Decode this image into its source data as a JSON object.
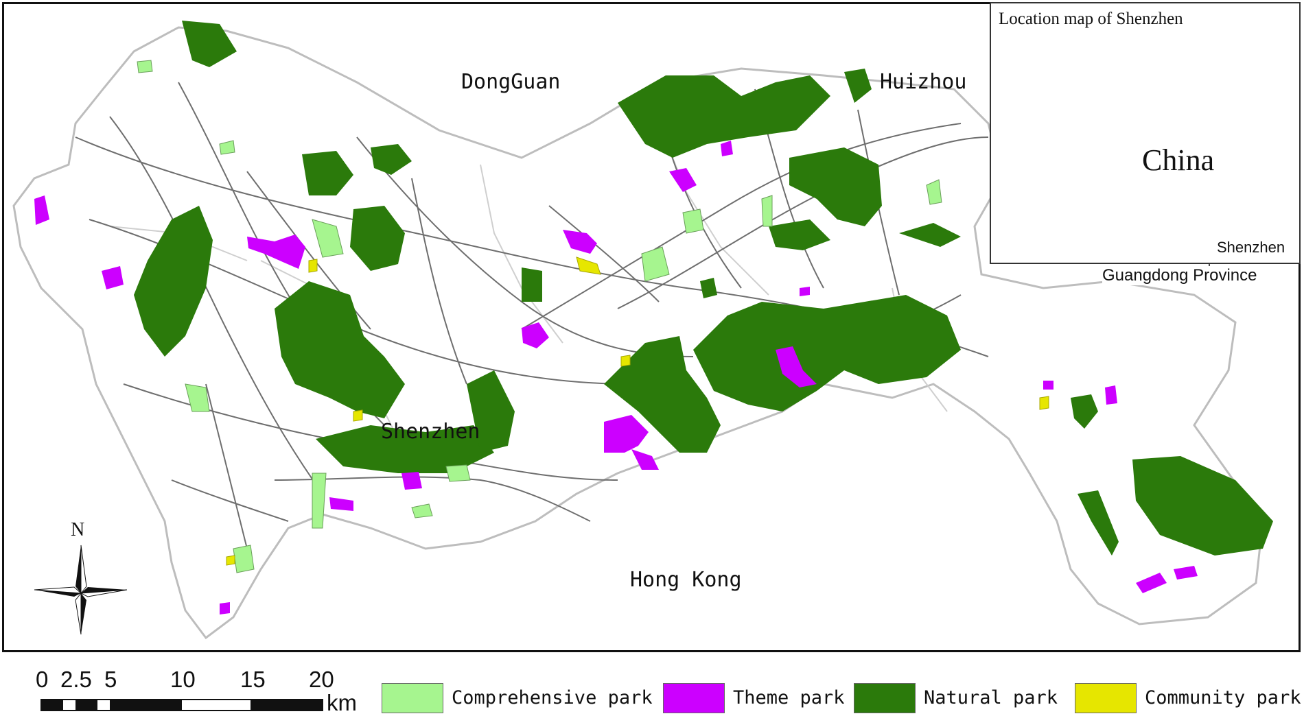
{
  "map": {
    "region_labels": {
      "dongguan": "DongGuan",
      "huizhou": "Huizhou",
      "shenzhen": "Shenzhen",
      "hong_kong": "Hong Kong"
    },
    "north_arrow": "N",
    "colors": {
      "comprehensive_park": "#a6f58f",
      "theme_park": "#cc00ff",
      "natural_park": "#2b7a0b",
      "community_park": "#e6e600",
      "boundary": "#bdbdbd",
      "road": "#6e6e6e",
      "province_highlight": "#e60000",
      "country_fill": "#d9d9d9"
    }
  },
  "inset": {
    "title": "Location map of Shenzhen",
    "country_label": "China",
    "city_label": "Shenzhen",
    "province_label": "Guangdong Province"
  },
  "scale_bar": {
    "ticks": [
      "0",
      "2.5",
      "5",
      "10",
      "15",
      "20"
    ],
    "unit": "km"
  },
  "legend": {
    "items": [
      {
        "label": "Comprehensive park",
        "color": "#a6f58f"
      },
      {
        "label": "Theme park",
        "color": "#cc00ff"
      },
      {
        "label": "Natural park",
        "color": "#2b7a0b"
      },
      {
        "label": "Community park",
        "color": "#e6e600"
      }
    ]
  }
}
